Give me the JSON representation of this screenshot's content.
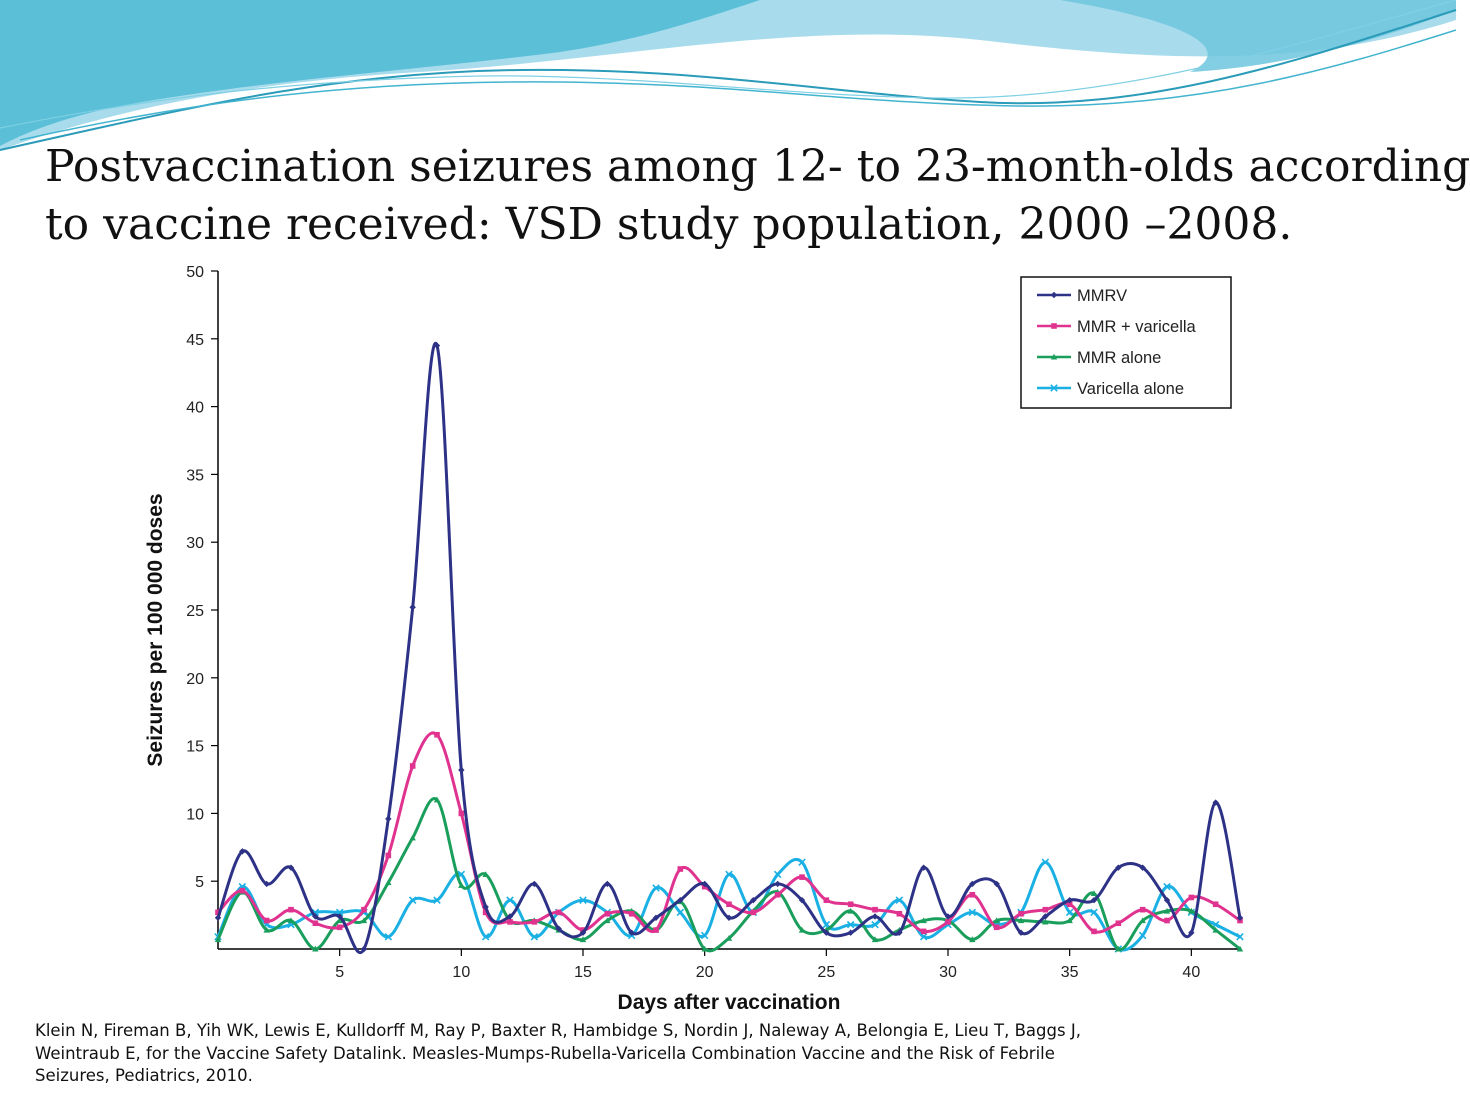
{
  "slide": {
    "title_lines": [
      "Postvaccination seizures among 12- to 23-month-olds according",
      "to vaccine received: VSD study population, 2000 –2008."
    ],
    "citation_lines": [
      "Klein N, Fireman B, Yih WK, Lewis E, Kulldorff M, Ray P, Baxter R, Hambidge S, Nordin J, Naleway A, Belongia E, Lieu T, Baggs J,",
      "Weintraub E, for the Vaccine Safety Datalink. Measles-Mumps-Rubella-Varicella Combination Vaccine and the Risk of Febrile",
      "Seizures, Pediatrics, 2010."
    ],
    "theme_colors": {
      "wave_dark": "#5bbfd8",
      "wave_light": "#a8dcec",
      "wave_line": "#2a9bb8"
    }
  },
  "chart_data": {
    "type": "line",
    "title": "",
    "xlabel": "Days after vaccination",
    "ylabel": "Seizures per 100 000 doses",
    "xlim": [
      0,
      42
    ],
    "ylim": [
      0,
      50
    ],
    "xticks": [
      5,
      10,
      15,
      20,
      25,
      30,
      35,
      40
    ],
    "yticks": [
      5,
      10,
      15,
      20,
      25,
      30,
      35,
      40,
      45,
      50
    ],
    "grid": false,
    "legend_position": "top-right",
    "x": [
      0,
      1,
      2,
      3,
      4,
      5,
      6,
      7,
      8,
      9,
      10,
      11,
      12,
      13,
      14,
      15,
      16,
      17,
      18,
      19,
      20,
      21,
      22,
      23,
      24,
      25,
      26,
      27,
      28,
      29,
      30,
      31,
      32,
      33,
      34,
      35,
      36,
      37,
      38,
      39,
      40,
      41,
      42
    ],
    "series": [
      {
        "name": "MMRV",
        "color": "#2e3287",
        "marker": "diamond",
        "values": [
          2.3,
          7.2,
          4.8,
          6.0,
          2.4,
          2.4,
          0.0,
          9.6,
          25.2,
          44.5,
          13.2,
          3.1,
          2.4,
          4.8,
          1.5,
          1.2,
          4.8,
          1.2,
          2.3,
          3.6,
          4.8,
          2.3,
          3.6,
          4.8,
          3.6,
          1.2,
          1.2,
          2.4,
          1.2,
          6.0,
          2.4,
          4.8,
          4.8,
          1.2,
          2.4,
          3.6,
          3.6,
          6.0,
          6.0,
          3.6,
          1.2,
          10.8,
          2.3
        ]
      },
      {
        "name": "MMR + varicella",
        "color": "#e0338f",
        "marker": "square",
        "values": [
          2.7,
          4.3,
          2.1,
          2.9,
          1.9,
          1.6,
          2.9,
          6.9,
          13.5,
          15.8,
          10.0,
          2.7,
          2.0,
          2.0,
          2.7,
          1.4,
          2.6,
          2.6,
          1.4,
          5.9,
          4.6,
          3.3,
          2.7,
          4.0,
          5.3,
          3.6,
          3.3,
          2.9,
          2.6,
          1.3,
          2.0,
          4.0,
          1.6,
          2.6,
          2.9,
          3.3,
          1.3,
          1.9,
          2.9,
          2.1,
          3.8,
          3.3,
          2.1
        ]
      },
      {
        "name": "MMR alone",
        "color": "#1a9e5c",
        "marker": "triangle",
        "values": [
          0.7,
          4.2,
          1.4,
          2.1,
          0.0,
          2.1,
          2.1,
          4.9,
          8.2,
          11.0,
          4.7,
          5.5,
          2.1,
          2.1,
          1.4,
          0.7,
          2.1,
          2.8,
          1.4,
          3.5,
          0.0,
          0.8,
          2.8,
          4.2,
          1.4,
          1.4,
          2.8,
          0.7,
          1.4,
          2.1,
          2.1,
          0.7,
          2.1,
          2.1,
          2.0,
          2.1,
          4.1,
          0.0,
          2.1,
          2.8,
          2.8,
          1.4,
          0.0
        ]
      },
      {
        "name": "Varicella alone",
        "color": "#1ab0e4",
        "marker": "x",
        "values": [
          0.9,
          4.6,
          1.8,
          1.8,
          2.7,
          2.7,
          2.7,
          0.9,
          3.6,
          3.6,
          5.5,
          0.9,
          3.6,
          0.9,
          2.7,
          3.6,
          2.7,
          1.0,
          4.5,
          2.7,
          1.0,
          5.5,
          2.7,
          5.5,
          6.4,
          1.8,
          1.8,
          1.8,
          3.6,
          0.9,
          1.8,
          2.7,
          1.8,
          2.7,
          6.4,
          2.7,
          2.7,
          0.0,
          1.0,
          4.6,
          2.7,
          1.8,
          0.9
        ]
      }
    ]
  }
}
